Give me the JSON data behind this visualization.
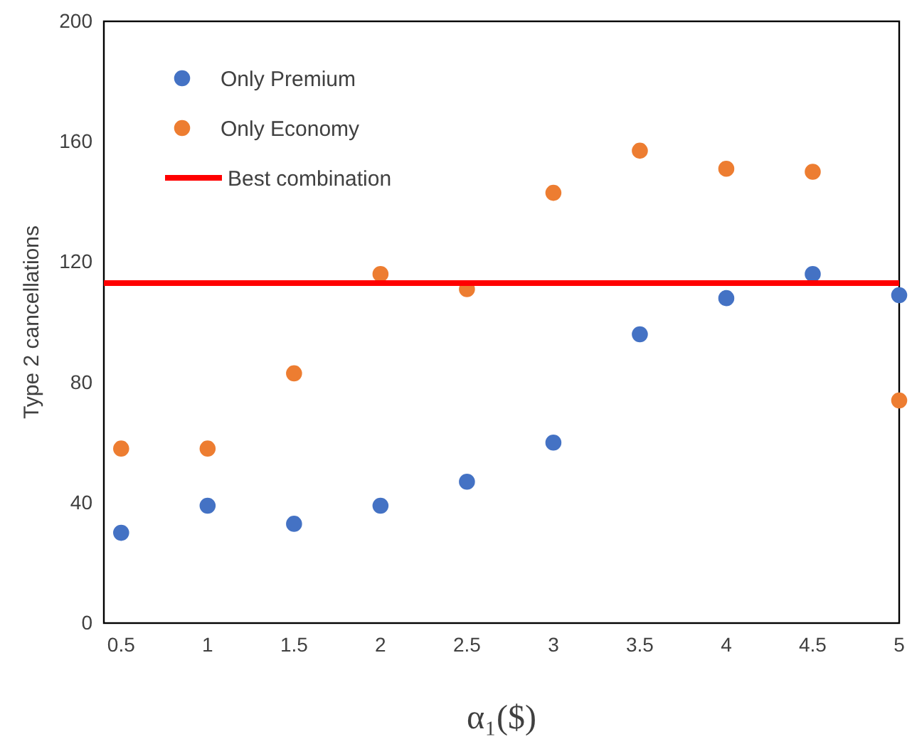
{
  "chart_data": {
    "type": "scatter",
    "xlabel": "α₁($)",
    "ylabel": "Type 2 cancellations",
    "x": [
      0.5,
      1,
      1.5,
      2,
      2.5,
      3,
      3.5,
      4,
      4.5,
      5
    ],
    "series": [
      {
        "name": "Only Premium",
        "color": "#4472c4",
        "values": [
          30,
          39,
          33,
          39,
          47,
          60,
          96,
          108,
          116,
          109
        ]
      },
      {
        "name": "Only Economy",
        "color": "#ed7d31",
        "values": [
          58,
          58,
          83,
          116,
          111,
          143,
          157,
          151,
          150,
          74
        ]
      },
      {
        "name": "Best combination",
        "type": "line",
        "marker": "none",
        "color": "#ff0000",
        "x": [
          0.4,
          5
        ],
        "values": [
          113,
          113
        ]
      }
    ],
    "xlim": [
      0.4,
      5
    ],
    "xticks": [
      0.5,
      1,
      1.5,
      2,
      2.5,
      3,
      3.5,
      4,
      4.5,
      5
    ],
    "ylim": [
      0,
      200
    ],
    "yticks": [
      0,
      40,
      80,
      120,
      160,
      200
    ],
    "grid": false,
    "legend": "top left",
    "marker": "circle"
  }
}
